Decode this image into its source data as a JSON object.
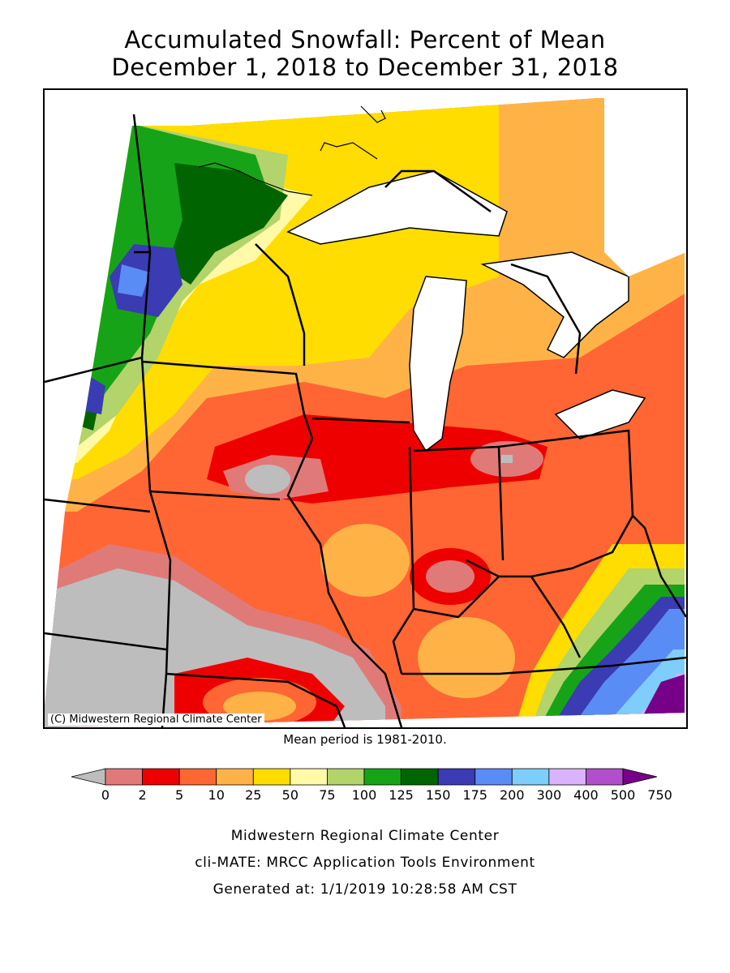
{
  "title_line1": "Accumulated Snowfall: Percent of Mean",
  "title_line2": "December 1, 2018 to December 31, 2018",
  "copyright": "(C) Midwestern Regional Climate Center",
  "mean_note": "Mean period is 1981-2010.",
  "legend": {
    "labels": [
      "0",
      "2",
      "5",
      "10",
      "25",
      "50",
      "75",
      "100",
      "125",
      "150",
      "175",
      "200",
      "300",
      "400",
      "500",
      "750"
    ],
    "colors": [
      "#bdbdbd",
      "#e07a78",
      "#ee0000",
      "#ff6633",
      "#ffb347",
      "#ffdd00",
      "#fff9a8",
      "#b3d36b",
      "#17a317",
      "#006400",
      "#3b3bb3",
      "#5a8cf5",
      "#7fcdfa",
      "#d9b3ff",
      "#b04fc9",
      "#770088"
    ]
  },
  "footer": {
    "line1": "Midwestern Regional Climate Center",
    "line2": "cli-MATE: MRCC Application Tools Environment",
    "line3": "Generated at: 1/1/2019 10:28:58 AM CST"
  }
}
